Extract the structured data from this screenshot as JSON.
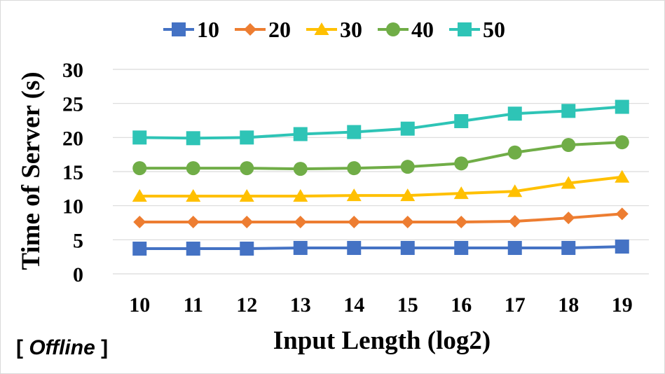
{
  "chart_data": {
    "type": "line",
    "title": "",
    "xlabel": "Input Length (log2)",
    "ylabel": "Time of Server (s)",
    "x": [
      10,
      11,
      12,
      13,
      14,
      15,
      16,
      17,
      18,
      19
    ],
    "x_tick_labels": [
      "10",
      "11",
      "12",
      "13",
      "14",
      "15",
      "16",
      "17",
      "18",
      "19"
    ],
    "ylim": [
      0,
      30
    ],
    "y_ticks": [
      0,
      5,
      10,
      15,
      20,
      25,
      30
    ],
    "y_tick_labels": [
      "0",
      "5",
      "10",
      "15",
      "20",
      "25",
      "30"
    ],
    "grid": true,
    "legend_position": "top",
    "series": [
      {
        "name": "10",
        "marker": "square",
        "color": "#4472C4",
        "values": [
          3.7,
          3.7,
          3.7,
          3.8,
          3.8,
          3.8,
          3.8,
          3.8,
          3.8,
          4.0
        ]
      },
      {
        "name": "20",
        "marker": "diamond",
        "color": "#ED7D31",
        "values": [
          7.6,
          7.6,
          7.6,
          7.6,
          7.6,
          7.6,
          7.6,
          7.7,
          8.2,
          8.8
        ]
      },
      {
        "name": "30",
        "marker": "triangle",
        "color": "#FFC000",
        "values": [
          11.4,
          11.4,
          11.4,
          11.4,
          11.5,
          11.5,
          11.8,
          12.1,
          13.3,
          14.2
        ]
      },
      {
        "name": "40",
        "marker": "circle",
        "color": "#70AD47",
        "values": [
          15.5,
          15.5,
          15.5,
          15.4,
          15.5,
          15.7,
          16.2,
          17.8,
          18.9,
          19.3
        ]
      },
      {
        "name": "50",
        "marker": "square",
        "color": "#2EC4B6",
        "values": [
          20.0,
          19.9,
          20.0,
          20.5,
          20.8,
          21.3,
          22.4,
          23.5,
          23.9,
          24.5
        ]
      }
    ]
  },
  "note": {
    "open": "[ ",
    "emphasis": "Offline",
    "close": " ]"
  }
}
